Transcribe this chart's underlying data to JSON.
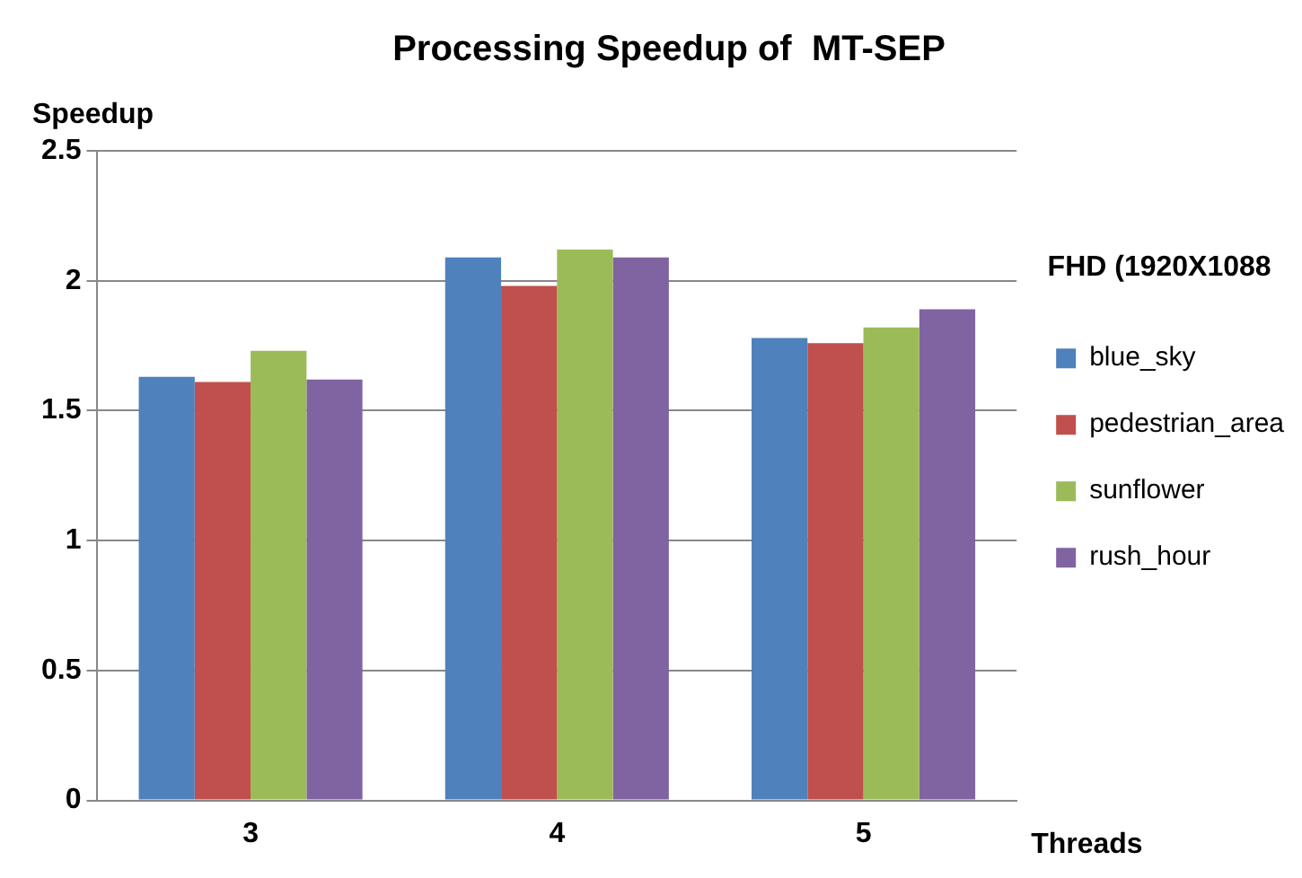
{
  "chart_data": {
    "type": "bar",
    "title": "Processing Speedup of  MT-SEP",
    "xlabel": "Threads",
    "ylabel": "Speedup",
    "legend_title": "FHD (1920X1088",
    "categories": [
      "3",
      "4",
      "5"
    ],
    "series": [
      {
        "name": "blue_sky",
        "color": "#4f81bd",
        "values": [
          1.63,
          2.09,
          1.78
        ]
      },
      {
        "name": "pedestrian_area",
        "color": "#c0504d",
        "values": [
          1.61,
          1.98,
          1.76
        ]
      },
      {
        "name": "sunflower",
        "color": "#9bbb59",
        "values": [
          1.73,
          2.12,
          1.82
        ]
      },
      {
        "name": "rush_hour",
        "color": "#8064a2",
        "values": [
          1.62,
          2.09,
          1.89
        ]
      }
    ],
    "ylim": [
      0,
      2.5
    ],
    "yticks": [
      0,
      0.5,
      1,
      1.5,
      2,
      2.5
    ],
    "grid": "y",
    "legend": "right"
  }
}
